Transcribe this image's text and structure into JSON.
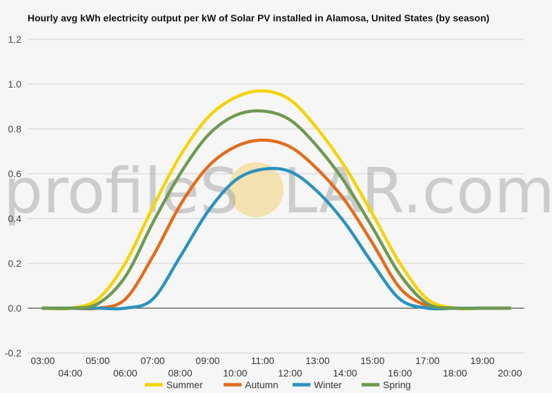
{
  "chart_data": {
    "type": "line",
    "title": "Hourly avg kWh electricity output per kW of Solar PV installed in Alamosa, United States (by season)",
    "watermark": {
      "left": "profileS",
      "right": "LAR.com"
    },
    "y_ticks": [
      "1.2",
      "1.0",
      "0.8",
      "0.6",
      "0.4",
      "0.2",
      "0.0",
      "-0.2"
    ],
    "ylim": [
      -0.2,
      1.2
    ],
    "x_tick_labels_top": [
      "03:00",
      "05:00",
      "07:00",
      "09:00",
      "11:00",
      "13:00",
      "15:00",
      "17:00",
      "19:00"
    ],
    "x_tick_labels_bottom": [
      "04:00",
      "06:00",
      "08:00",
      "10:00",
      "12:00",
      "14:00",
      "16:00",
      "18:00",
      "20:00"
    ],
    "x": [
      3,
      4,
      5,
      6,
      7,
      8,
      9,
      10,
      11,
      12,
      13,
      14,
      15,
      16,
      17,
      18,
      19,
      20
    ],
    "xlim": [
      3,
      20
    ],
    "grid": true,
    "legend_position": "bottom",
    "series": [
      {
        "name": "Summer",
        "color": "#f6d20a",
        "values": [
          0.0,
          0.0,
          0.04,
          0.2,
          0.45,
          0.68,
          0.85,
          0.94,
          0.97,
          0.93,
          0.8,
          0.63,
          0.42,
          0.2,
          0.04,
          0.0,
          0.0,
          0.0
        ]
      },
      {
        "name": "Autumn",
        "color": "#e36c1c",
        "values": [
          0.0,
          0.0,
          0.0,
          0.04,
          0.23,
          0.46,
          0.63,
          0.72,
          0.75,
          0.72,
          0.62,
          0.48,
          0.29,
          0.09,
          0.01,
          0.0,
          0.0,
          0.0
        ]
      },
      {
        "name": "Winter",
        "color": "#2b93bd",
        "values": [
          0.0,
          0.0,
          0.0,
          0.0,
          0.04,
          0.23,
          0.43,
          0.57,
          0.62,
          0.61,
          0.52,
          0.38,
          0.2,
          0.04,
          0.0,
          0.0,
          0.0,
          0.0
        ]
      },
      {
        "name": "Spring",
        "color": "#6e9a50",
        "values": [
          0.0,
          0.0,
          0.02,
          0.14,
          0.38,
          0.6,
          0.77,
          0.86,
          0.88,
          0.84,
          0.72,
          0.56,
          0.36,
          0.15,
          0.02,
          0.0,
          0.0,
          0.0
        ]
      }
    ]
  }
}
